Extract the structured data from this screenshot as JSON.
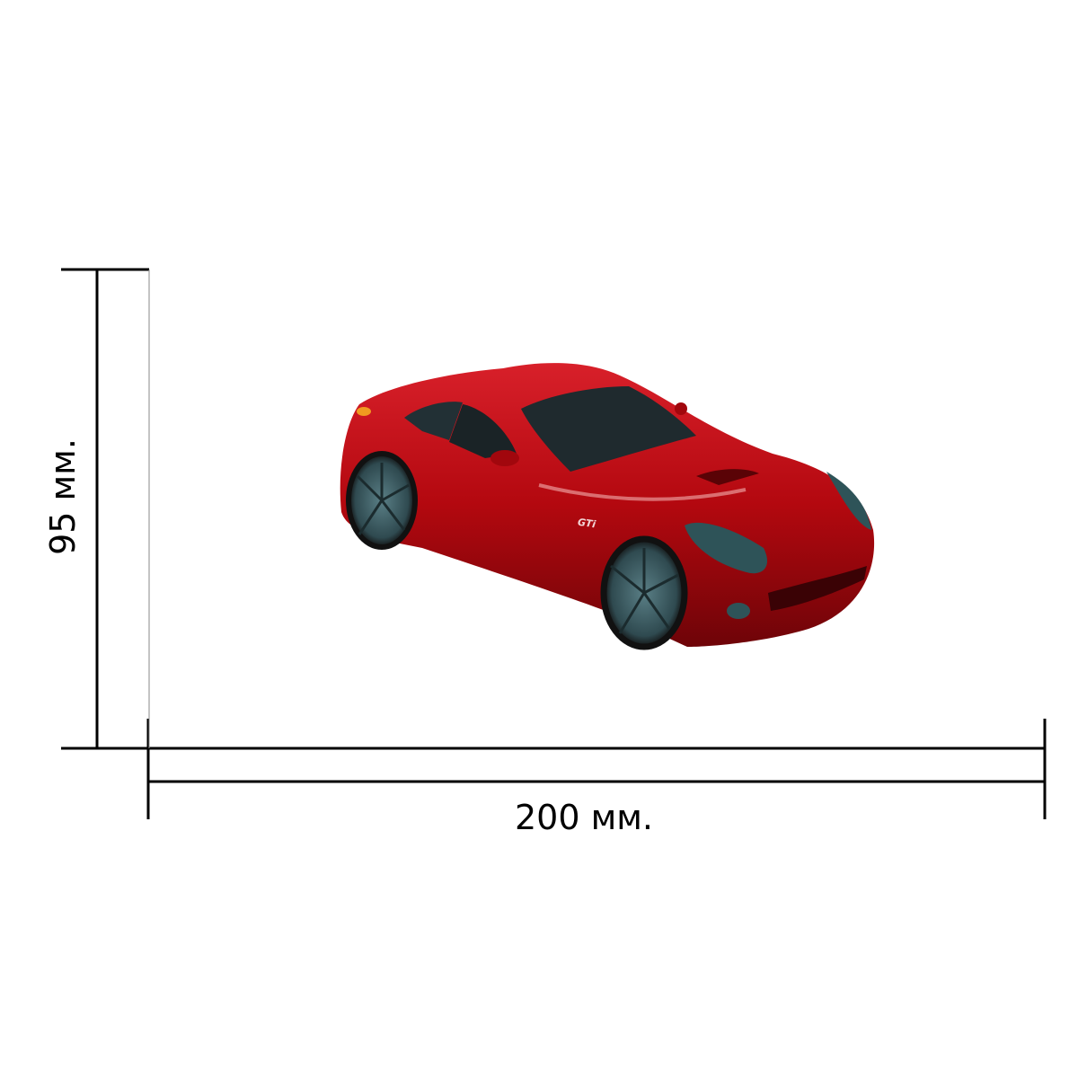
{
  "dimensions": {
    "height_label": "95 мм.",
    "width_label": "200 мм."
  },
  "product": {
    "body_color": "#b3080f",
    "badge": "GTi"
  },
  "colors": {
    "lines": "#000000",
    "background": "#ffffff"
  }
}
